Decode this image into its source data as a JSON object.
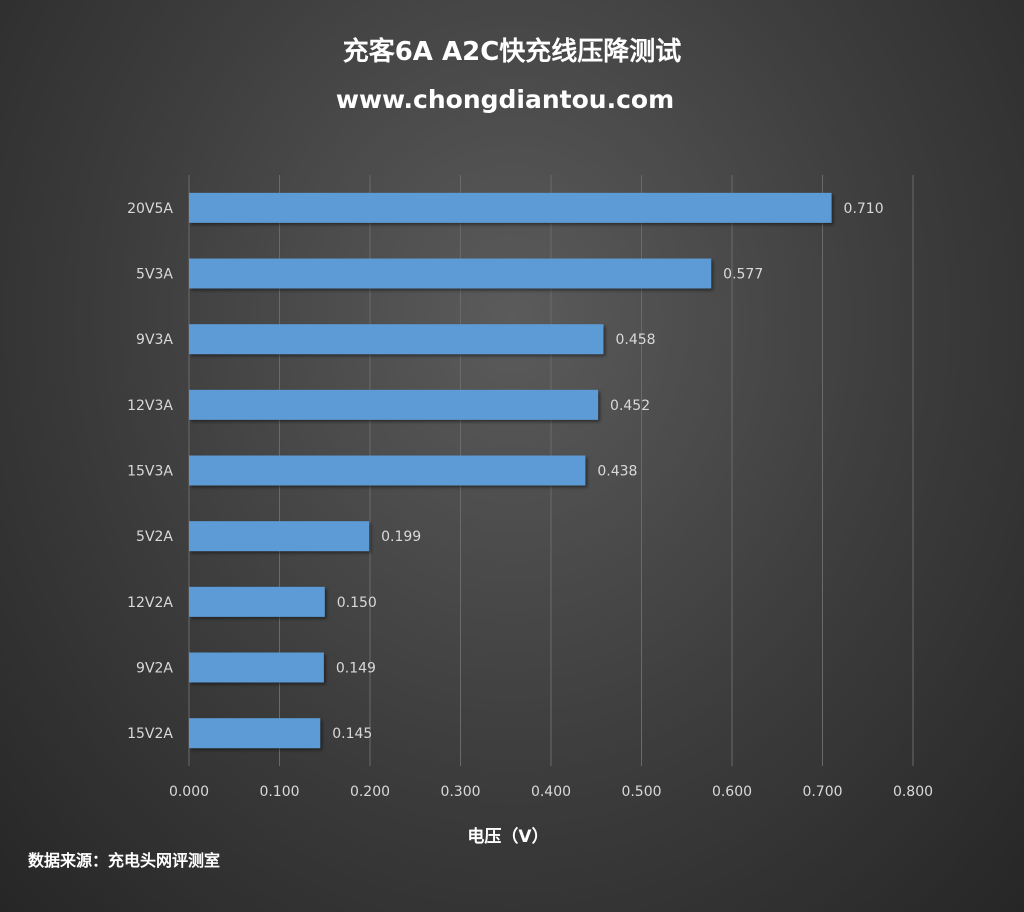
{
  "chart_data": {
    "type": "bar",
    "orientation": "horizontal",
    "title": "充客6A A2C快充线压降测试",
    "subtitle": "www.chongdiantou.com",
    "xlabel": "电压（V）",
    "ylabel": "",
    "xlim": [
      0,
      0.8
    ],
    "ticks": [
      "0.000",
      "0.100",
      "0.200",
      "0.300",
      "0.400",
      "0.500",
      "0.600",
      "0.700",
      "0.800"
    ],
    "grid": true,
    "categories": [
      "20V5A",
      "5V3A",
      "9V3A",
      "12V3A",
      "15V3A",
      "5V2A",
      "12V2A",
      "9V2A",
      "15V2A"
    ],
    "values": [
      0.71,
      0.577,
      0.458,
      0.452,
      0.438,
      0.199,
      0.15,
      0.149,
      0.145
    ],
    "data_labels": [
      "0.710",
      "0.577",
      "0.458",
      "0.452",
      "0.438",
      "0.199",
      "0.150",
      "0.149",
      "0.145"
    ],
    "bar_color": "#5b9bd5"
  },
  "source": "数据来源：充电头网评测室"
}
